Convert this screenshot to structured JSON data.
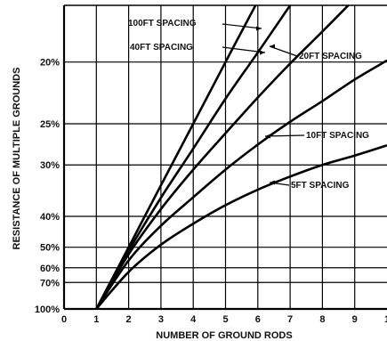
{
  "chart_data": {
    "type": "line",
    "title": "",
    "xlabel": "NUMBER OF GROUND RODS",
    "ylabel": "RESISTANCE OF MULTIPLE GROUNDS",
    "x_ticks": [
      "0",
      "1",
      "2",
      "3",
      "4",
      "5",
      "6",
      "7",
      "8",
      "9",
      "1"
    ],
    "y_ticks": [
      {
        "label": "20%",
        "value": 20
      },
      {
        "label": "25%",
        "value": 25
      },
      {
        "label": "30%",
        "value": 30
      },
      {
        "label": "40%",
        "value": 40
      },
      {
        "label": "50%",
        "value": 50
      },
      {
        "label": "60%",
        "value": 60
      },
      {
        "label": "70%",
        "value": 70
      },
      {
        "label": "100%",
        "value": 100
      }
    ],
    "y_scale": "reciprocal",
    "xlim": [
      0,
      10
    ],
    "grid": true,
    "series": [
      {
        "name": "100FT SPACING",
        "x": [
          1,
          2,
          3,
          4,
          5,
          6,
          6.3
        ],
        "y": [
          100,
          50,
          33.3,
          25,
          20,
          16.7,
          16
        ]
      },
      {
        "name": "40FT SPACING",
        "x": [
          1,
          2,
          3,
          4,
          5,
          6,
          7
        ],
        "y": [
          100,
          51.5,
          35.7,
          27.8,
          22.7,
          19.4,
          16.9
        ]
      },
      {
        "name": "20FT SPACING",
        "x": [
          1,
          2,
          3,
          4,
          5,
          6,
          7,
          8,
          9,
          9.2
        ],
        "y": [
          100,
          53,
          38.2,
          30.7,
          26,
          22.6,
          20.1,
          18.2,
          16.6,
          16.3
        ]
      },
      {
        "name": "10FT SPACING",
        "x": [
          1,
          2,
          3,
          4,
          5,
          6,
          7,
          8,
          9,
          10
        ],
        "y": [
          100,
          56,
          42.6,
          35.6,
          30.7,
          27.3,
          24.8,
          22.9,
          21.2,
          19.9
        ]
      },
      {
        "name": "5FT SPACING",
        "x": [
          1,
          2,
          3,
          4,
          5,
          6,
          7,
          8,
          9,
          10
        ],
        "y": [
          100,
          62.5,
          49,
          42,
          37.3,
          34.1,
          31.8,
          30,
          28.7,
          27.4
        ]
      }
    ]
  }
}
